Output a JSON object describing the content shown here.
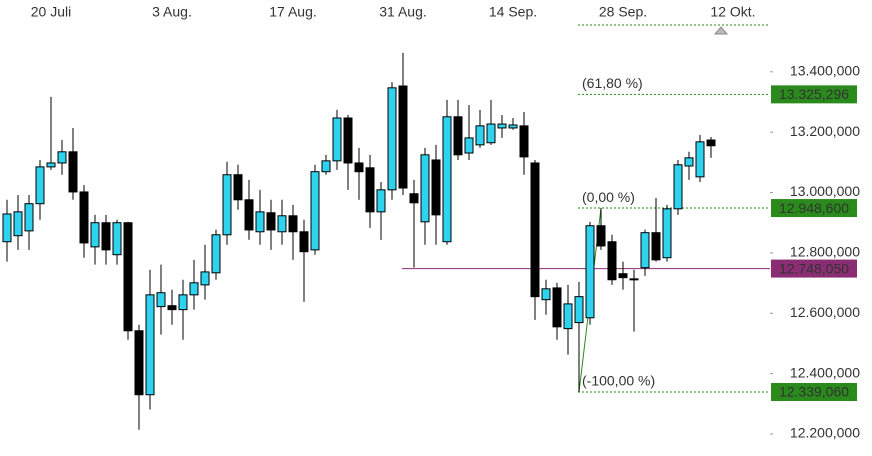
{
  "chart_data": {
    "type": "candlestick",
    "categories": [
      null,
      null,
      null,
      null,
      "20 Juli",
      null,
      null,
      null,
      null,
      null,
      null,
      null,
      null,
      null,
      null,
      "3 Aug.",
      null,
      null,
      null,
      null,
      null,
      null,
      null,
      null,
      null,
      null,
      "17 Aug.",
      null,
      null,
      null,
      null,
      null,
      null,
      null,
      null,
      null,
      "31 Aug.",
      null,
      null,
      null,
      null,
      null,
      null,
      null,
      null,
      null,
      "14 Sep.",
      null,
      null,
      null,
      null,
      null,
      null,
      null,
      null,
      null,
      "28 Sep.",
      null,
      null,
      null,
      null,
      null,
      null,
      null,
      null,
      null,
      "12 Okt."
    ],
    "open": [
      12837,
      12857,
      12873,
      12963,
      13085,
      13098,
      13135,
      13002,
      12820,
      12900,
      12794,
      12900,
      12542,
      12330,
      12622,
      12625,
      12612,
      12661,
      12694,
      12734,
      12860,
      13059,
      12976,
      12870,
      12933,
      12870,
      12923,
      12870,
      12810,
      13069,
      13105,
      13247,
      13098,
      13082,
      12936,
      13009,
      13353,
      12996,
      12903,
      13108,
      12837,
      13251,
      13131,
      13158,
      13165,
      13214,
      13214,
      13221,
      13098,
      12645,
      12684,
      12549,
      12569,
      12585,
      12890,
      12837,
      12731,
      12714,
      12751,
      12867,
      12784,
      12946,
      13088,
      13052,
      13174,
      null,
      null
    ],
    "high": [
      12976,
      12992,
      12992,
      13108,
      13317,
      13174,
      13214,
      13025,
      12926,
      12926,
      12910,
      12903,
      12562,
      12744,
      12761,
      12678,
      12711,
      12777,
      12827,
      12877,
      13102,
      13092,
      13042,
      13009,
      12976,
      12976,
      12959,
      12910,
      13092,
      13125,
      13274,
      13257,
      13148,
      13125,
      13035,
      13366,
      13463,
      13042,
      13148,
      13158,
      13307,
      13307,
      13290,
      13274,
      13307,
      13257,
      13247,
      13267,
      13108,
      12711,
      12701,
      12694,
      12704,
      12903,
      12949,
      12860,
      12771,
      12744,
      12877,
      12982,
      12959,
      13108,
      13135,
      13191,
      13184,
      null,
      null
    ],
    "low": [
      12771,
      12810,
      12810,
      12910,
      13075,
      13059,
      12976,
      12784,
      12761,
      12761,
      12761,
      12512,
      12214,
      12281,
      12529,
      12562,
      12512,
      12612,
      12645,
      12711,
      12827,
      12943,
      12843,
      12827,
      12810,
      12827,
      12777,
      12638,
      12794,
      13059,
      13075,
      13009,
      12976,
      12883,
      12843,
      12976,
      12992,
      12751,
      12827,
      12827,
      12827,
      13108,
      13108,
      13148,
      13158,
      13181,
      13208,
      13059,
      12578,
      12595,
      12512,
      12463,
      12339,
      12562,
      12810,
      12694,
      12678,
      12539,
      12724,
      12771,
      12771,
      12926,
      13042,
      13035,
      13115,
      null,
      null
    ],
    "close": [
      12929,
      12936,
      12963,
      13085,
      13098,
      13135,
      13002,
      12833,
      12900,
      12810,
      12900,
      12542,
      12330,
      12661,
      12668,
      12612,
      12661,
      12701,
      12737,
      12860,
      13059,
      12976,
      12876,
      12936,
      12876,
      12923,
      12870,
      12804,
      13069,
      13105,
      13247,
      13098,
      13069,
      12936,
      13009,
      13347,
      13015,
      12966,
      13125,
      12926,
      13251,
      13125,
      13181,
      13221,
      13227,
      13227,
      13224,
      13118,
      12655,
      12681,
      12555,
      12631,
      12655,
      12890,
      12823,
      12711,
      12718,
      12711,
      12867,
      12777,
      12946,
      13092,
      13115,
      13168,
      13155,
      null,
      null
    ],
    "up_color": "#2fd3f0",
    "down_color": "#000000",
    "ylim": [
      12127,
      13638
    ],
    "yticks": [
      {
        "value": 12200,
        "label": "12.200,000"
      },
      {
        "value": 12400,
        "label": "12.400,000"
      },
      {
        "value": 12600,
        "label": "12.600,000"
      },
      {
        "value": 12800,
        "label": "12.800,000"
      },
      {
        "value": 13000,
        "label": "13.000,000"
      },
      {
        "value": 13200,
        "label": "13.200,000"
      },
      {
        "value": 13400,
        "label": "13.400,000"
      }
    ],
    "levels": [
      {
        "label": "(61,80 %)",
        "value": 13325.296,
        "value_label": "13.325,296",
        "color": "#2a8a1c"
      },
      {
        "label": "(0,00 %)",
        "value": 12948.6,
        "value_label": "12.948,600",
        "color": "#2a8a1c"
      },
      {
        "label": "(-100,00 %)",
        "value": 12339.06,
        "value_label": "12.339,060",
        "color": "#2a8a1c"
      },
      {
        "value": 12748.05,
        "value_label": "12.748,050",
        "color": "#8b2d72"
      }
    ]
  }
}
